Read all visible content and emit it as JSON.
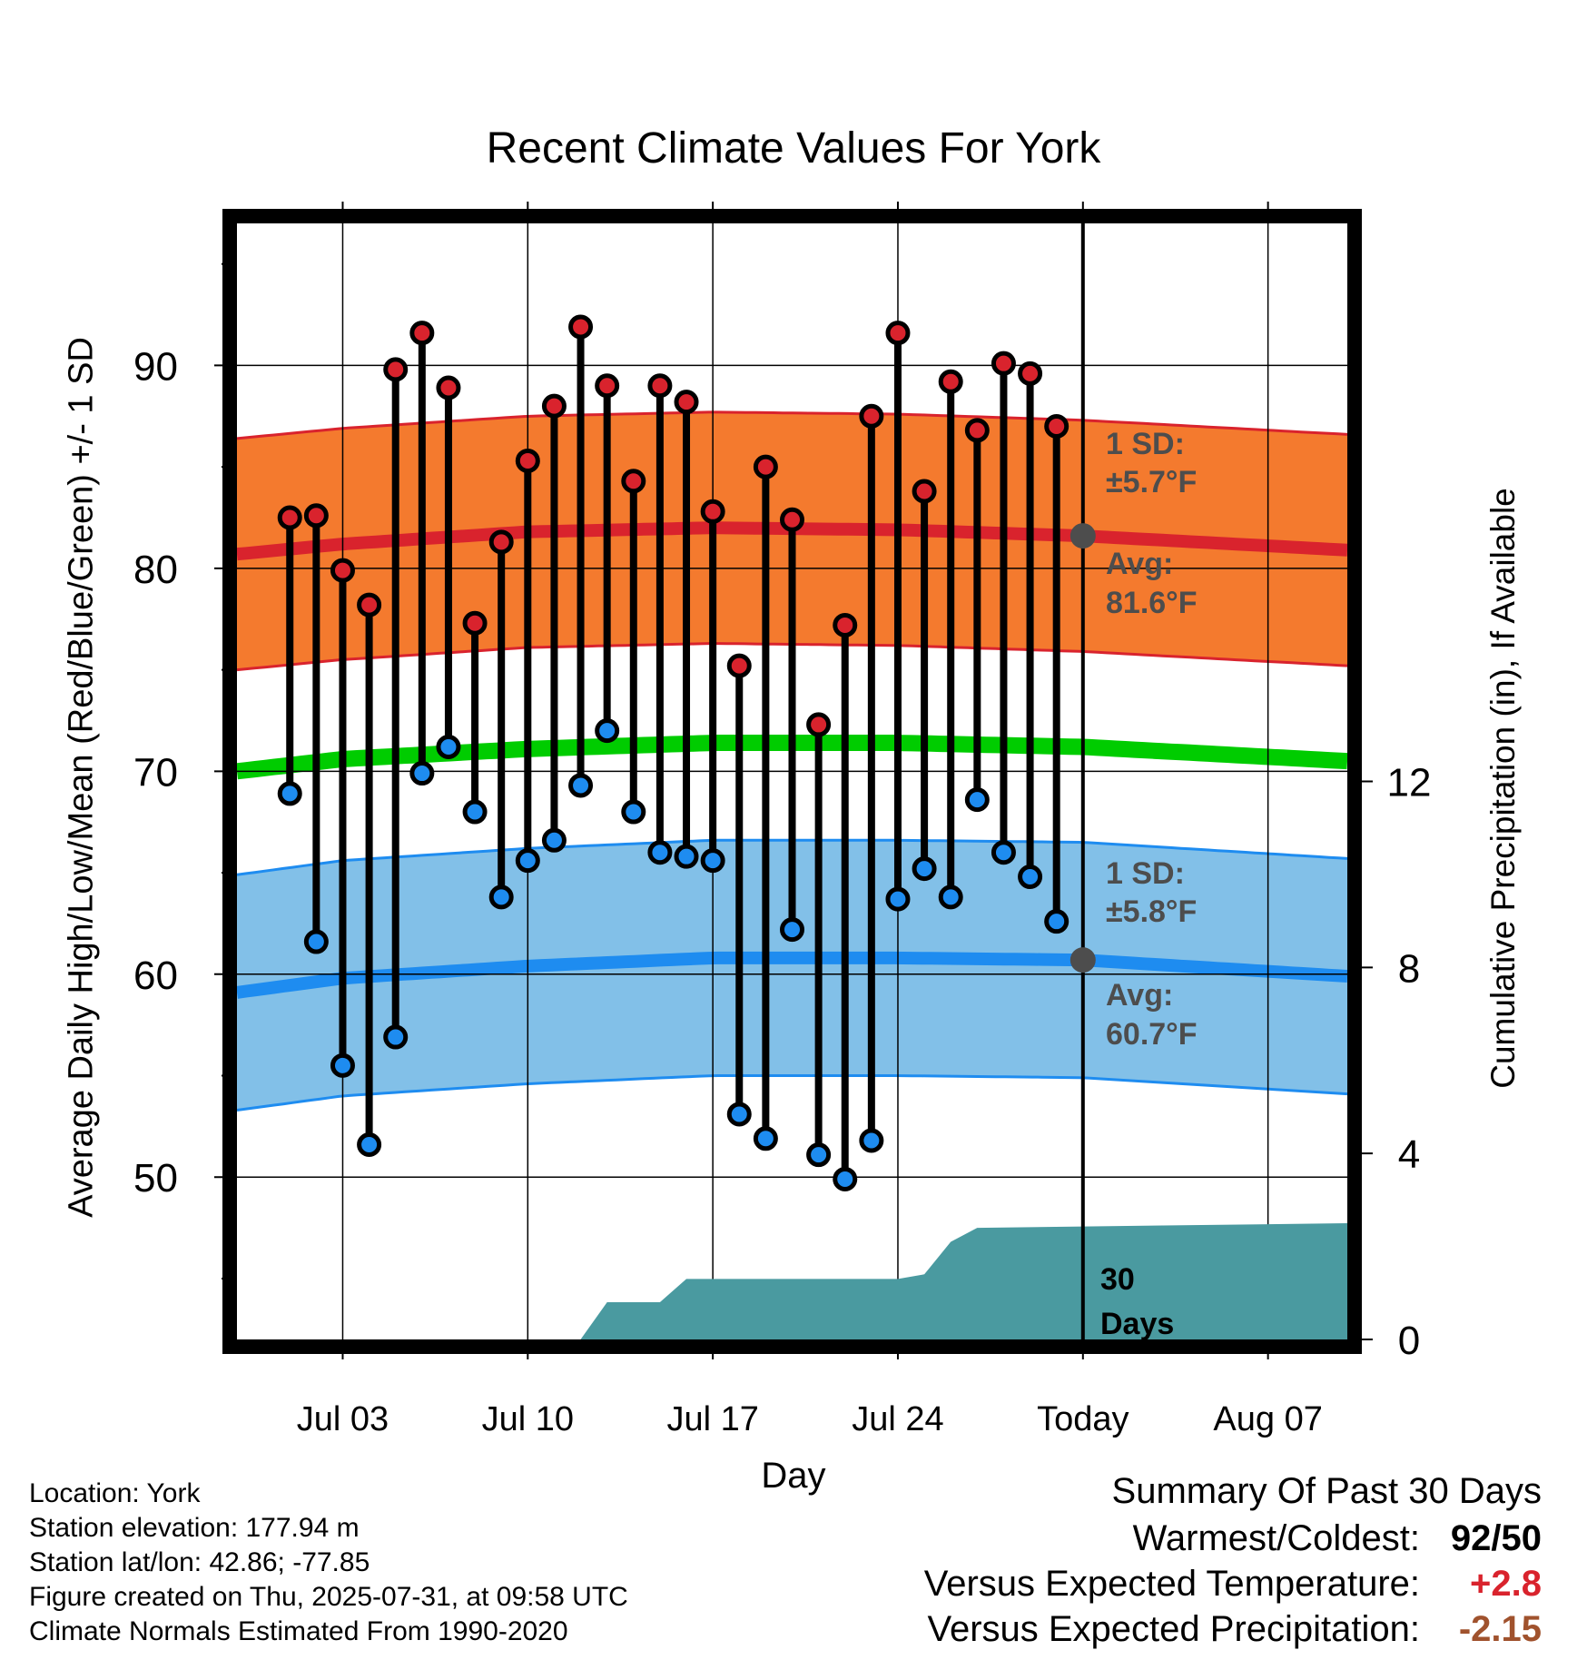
{
  "title": "Recent Climate Values For York",
  "axes": {
    "xlabel": "Day",
    "ylabel_left": "Average Daily High/Low/Mean (Red/Blue/Green) +/- 1 SD",
    "ylabel_right": "Cumulative Precipitation (in), If Available"
  },
  "annotations": {
    "high_sd_line1": "1 SD:",
    "high_sd_line2": "±5.7°F",
    "high_avg_line1": "Avg:",
    "high_avg_line2": "81.6°F",
    "low_sd_line1": "1 SD:",
    "low_sd_line2": "±5.8°F",
    "low_avg_line1": "Avg:",
    "low_avg_line2": "60.7°F",
    "period_line1": "30",
    "period_line2": "Days"
  },
  "metadata": {
    "location": "Location: York",
    "elevation": "Station elevation: 177.94 m",
    "latlon": "Station lat/lon: 42.86; -77.85",
    "created": "Figure created on Thu, 2025-07-31, at 09:58 UTC",
    "normals": "Climate Normals Estimated From 1990-2020"
  },
  "summary": {
    "title": "Summary Of Past 30 Days",
    "warm_cold_label": "Warmest/Coldest:",
    "warm_cold_value": "92/50",
    "temp_label": "Versus Expected Temperature:",
    "temp_value": "+2.8",
    "precip_label": "Versus Expected Precipitation:",
    "precip_value": "-2.15"
  },
  "colors": {
    "high_band": "#f47a2e",
    "high_line": "#d9232d",
    "low_band": "#82c0e8",
    "low_line": "#1e8cf0",
    "mean_line": "#00cc00",
    "precip_fill": "#4a9aa0",
    "high_dot": "#d9232d",
    "low_dot": "#1e8cf0",
    "annotation_text": "#4d4d4d",
    "summary_temp_value": "#d9232d",
    "summary_precip_value": "#a0522d"
  },
  "chart_data": {
    "type": "line",
    "x_domain": [
      "2025-06-29",
      "2025-08-10"
    ],
    "today": "2025-07-31",
    "x_ticks": [
      {
        "date": "2025-07-03",
        "label": "Jul 03"
      },
      {
        "date": "2025-07-10",
        "label": "Jul 10"
      },
      {
        "date": "2025-07-17",
        "label": "Jul 17"
      },
      {
        "date": "2025-07-24",
        "label": "Jul 24"
      },
      {
        "date": "2025-07-31",
        "label": "Today"
      },
      {
        "date": "2025-08-07",
        "label": "Aug 07"
      }
    ],
    "y_left": {
      "range": [
        42,
        97
      ],
      "ticks": [
        50,
        60,
        70,
        80,
        90
      ],
      "minor_step": 5
    },
    "y_right": {
      "range": [
        0,
        24
      ],
      "ticks": [
        0,
        4,
        8,
        12
      ]
    },
    "daily": {
      "dates": [
        "2025-07-01",
        "2025-07-02",
        "2025-07-03",
        "2025-07-04",
        "2025-07-05",
        "2025-07-06",
        "2025-07-07",
        "2025-07-08",
        "2025-07-09",
        "2025-07-10",
        "2025-07-11",
        "2025-07-12",
        "2025-07-13",
        "2025-07-14",
        "2025-07-15",
        "2025-07-16",
        "2025-07-17",
        "2025-07-18",
        "2025-07-19",
        "2025-07-20",
        "2025-07-21",
        "2025-07-22",
        "2025-07-23",
        "2025-07-24",
        "2025-07-25",
        "2025-07-26",
        "2025-07-27",
        "2025-07-28",
        "2025-07-29",
        "2025-07-30"
      ],
      "highs": [
        82.5,
        82.6,
        79.9,
        78.2,
        89.8,
        91.6,
        88.9,
        77.3,
        81.3,
        85.3,
        88.0,
        91.9,
        89.0,
        84.3,
        89.0,
        88.2,
        82.8,
        75.2,
        85.0,
        82.4,
        72.3,
        77.2,
        87.5,
        91.6,
        83.8,
        89.2,
        86.8,
        90.1,
        89.6,
        87.0
      ],
      "lows": [
        68.9,
        61.6,
        55.5,
        51.6,
        56.9,
        69.9,
        71.2,
        68.0,
        63.8,
        65.6,
        66.6,
        69.3,
        72.0,
        68.0,
        66.0,
        65.8,
        65.6,
        53.1,
        51.9,
        62.2,
        51.1,
        49.9,
        51.8,
        63.7,
        65.2,
        63.8,
        68.6,
        66.0,
        64.8,
        62.6
      ]
    },
    "normals": {
      "dates": [
        "2025-06-29",
        "2025-07-03",
        "2025-07-10",
        "2025-07-17",
        "2025-07-24",
        "2025-07-31",
        "2025-08-10"
      ],
      "high_avg": [
        80.7,
        81.2,
        81.8,
        82.0,
        81.9,
        81.6,
        80.9
      ],
      "high_sd": 5.7,
      "low_avg": [
        59.1,
        59.8,
        60.4,
        60.8,
        60.8,
        60.7,
        59.9
      ],
      "low_sd": 5.8,
      "mean_avg": [
        70.0,
        70.6,
        71.1,
        71.4,
        71.4,
        71.2,
        70.5
      ],
      "high_avg_today": 81.6,
      "low_avg_today": 60.7
    },
    "precipitation_cumulative": {
      "dates": [
        "2025-07-12",
        "2025-07-13",
        "2025-07-14",
        "2025-07-15",
        "2025-07-16",
        "2025-07-17",
        "2025-07-24",
        "2025-07-25",
        "2025-07-26",
        "2025-07-27",
        "2025-08-10"
      ],
      "values": [
        0.0,
        0.8,
        0.8,
        0.8,
        1.3,
        1.3,
        1.3,
        1.4,
        2.1,
        2.4,
        2.5
      ]
    }
  }
}
